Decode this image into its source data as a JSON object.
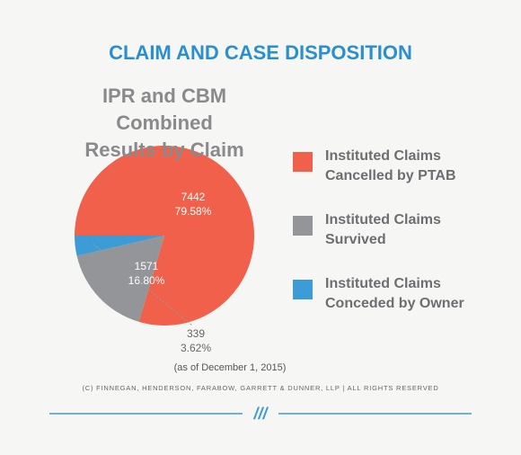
{
  "chart_data": {
    "type": "pie",
    "title": "CLAIM AND CASE DISPOSITION",
    "subtitle": "IPR and CBM Combined\nResults by Claim",
    "categories": [
      "Instituted Claims\nCancelled by PTAB",
      "Instituted Claims\nSurvived",
      "Instituted Claims\nConceded by Owner"
    ],
    "values": [
      7442,
      1571,
      339
    ],
    "value_labels": [
      "79.58%",
      "16.80%",
      "3.62%"
    ],
    "colors": [
      "#f0604a",
      "#939598",
      "#3d9bd6"
    ],
    "note": "(as of December 1, 2015)",
    "footer": "(C) FINNEGAN, HENDERSON, FARABOW, GARRETT & DUNNER, LLP | ALL RIGHTS RESERVED",
    "ornament": "///"
  }
}
